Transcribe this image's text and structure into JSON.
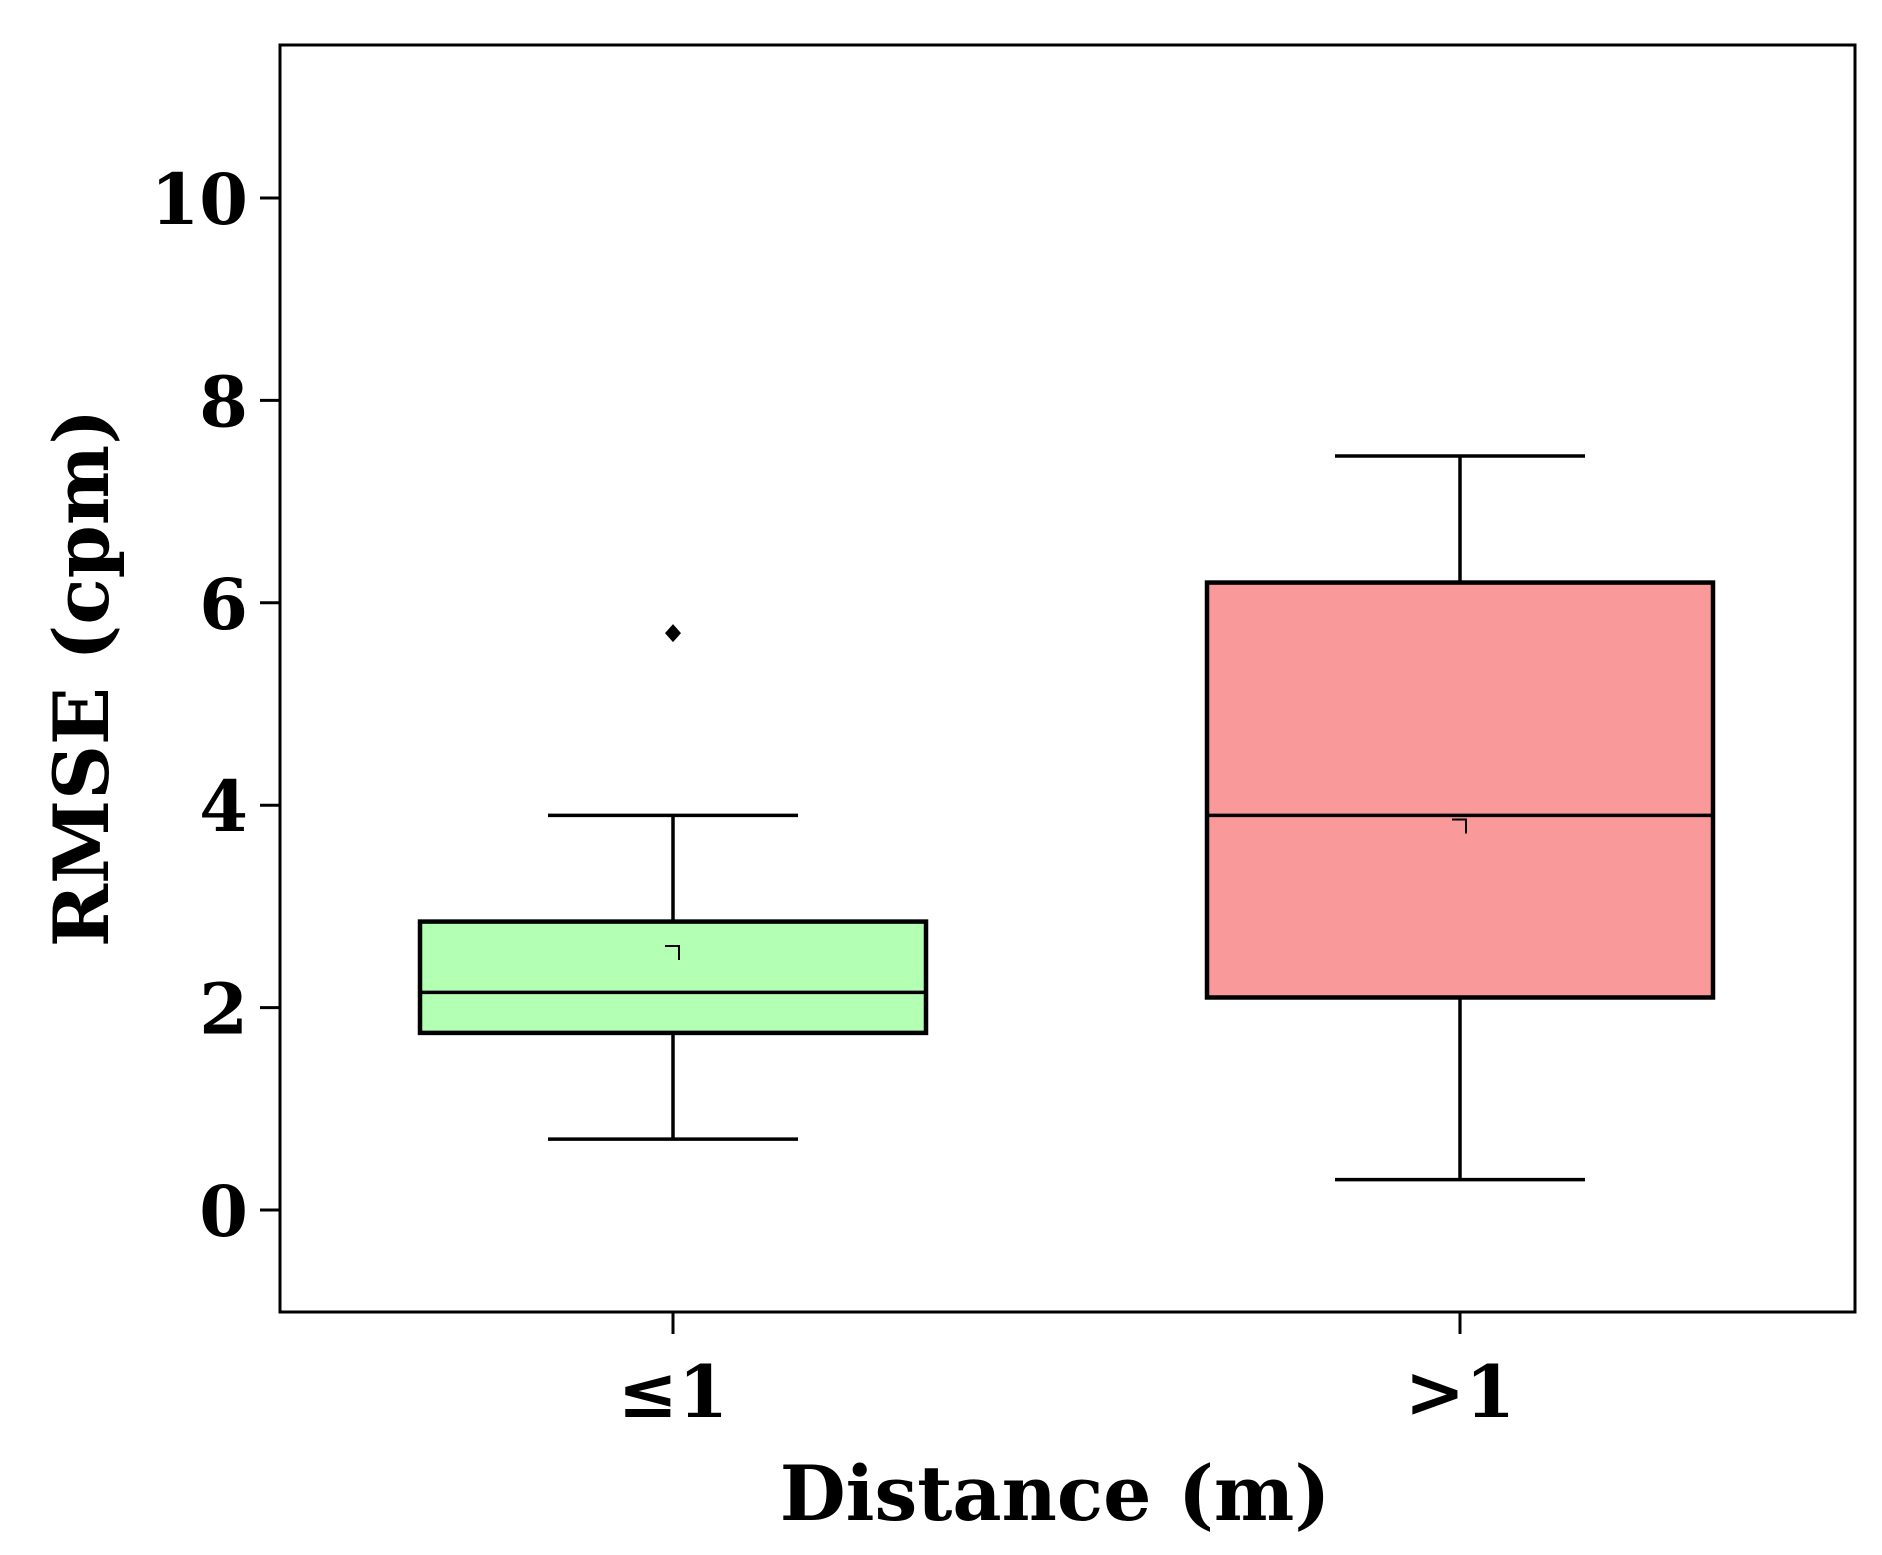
{
  "chart_data": {
    "type": "box",
    "title": "",
    "xlabel": "Distance (m)",
    "ylabel": "RMSE (cpm)",
    "ylim": [
      -1,
      11.5
    ],
    "yticks": [
      0,
      2,
      4,
      6,
      8,
      10
    ],
    "ytick_labels": [
      "0",
      "2",
      "4",
      "6",
      "8",
      "10"
    ],
    "grid": false,
    "legend": "none",
    "categories": [
      "≤1",
      ">1"
    ],
    "boxes": [
      {
        "category": "≤1",
        "whisker_low": 0.7,
        "q1": 1.75,
        "median": 2.15,
        "q3": 2.85,
        "whisker_high": 3.9,
        "mean": 2.55,
        "outliers": [
          5.7
        ],
        "color": "#b3ffb3"
      },
      {
        "category": ">1",
        "whisker_low": 0.3,
        "q1": 2.1,
        "median": 3.9,
        "q3": 6.2,
        "whisker_high": 7.45,
        "mean": 3.8,
        "outliers": [],
        "color": "#f99999"
      }
    ]
  }
}
